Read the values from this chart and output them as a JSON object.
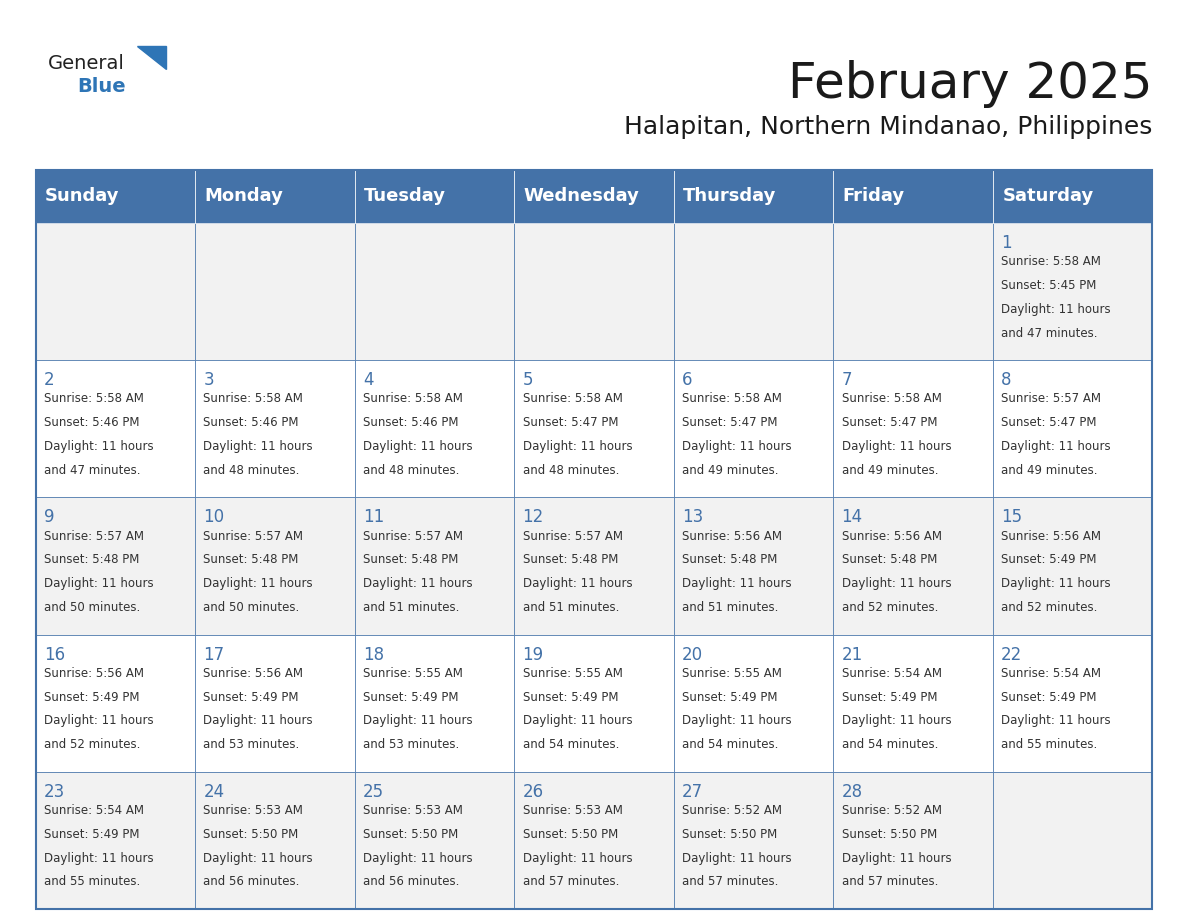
{
  "title": "February 2025",
  "subtitle": "Halapitan, Northern Mindanao, Philippines",
  "days_of_week": [
    "Sunday",
    "Monday",
    "Tuesday",
    "Wednesday",
    "Thursday",
    "Friday",
    "Saturday"
  ],
  "header_bg": "#4472a8",
  "header_text_color": "#ffffff",
  "cell_bg_even": "#f2f2f2",
  "cell_bg_odd": "#ffffff",
  "cell_border_color": "#4472a8",
  "day_number_color": "#4472a8",
  "text_color": "#333333",
  "calendar_data": [
    [
      null,
      null,
      null,
      null,
      null,
      null,
      {
        "day": 1,
        "sunrise": "5:58 AM",
        "sunset": "5:45 PM",
        "daylight": "11 hours and 47 minutes."
      }
    ],
    [
      {
        "day": 2,
        "sunrise": "5:58 AM",
        "sunset": "5:46 PM",
        "daylight": "11 hours and 47 minutes."
      },
      {
        "day": 3,
        "sunrise": "5:58 AM",
        "sunset": "5:46 PM",
        "daylight": "11 hours and 48 minutes."
      },
      {
        "day": 4,
        "sunrise": "5:58 AM",
        "sunset": "5:46 PM",
        "daylight": "11 hours and 48 minutes."
      },
      {
        "day": 5,
        "sunrise": "5:58 AM",
        "sunset": "5:47 PM",
        "daylight": "11 hours and 48 minutes."
      },
      {
        "day": 6,
        "sunrise": "5:58 AM",
        "sunset": "5:47 PM",
        "daylight": "11 hours and 49 minutes."
      },
      {
        "day": 7,
        "sunrise": "5:58 AM",
        "sunset": "5:47 PM",
        "daylight": "11 hours and 49 minutes."
      },
      {
        "day": 8,
        "sunrise": "5:57 AM",
        "sunset": "5:47 PM",
        "daylight": "11 hours and 49 minutes."
      }
    ],
    [
      {
        "day": 9,
        "sunrise": "5:57 AM",
        "sunset": "5:48 PM",
        "daylight": "11 hours and 50 minutes."
      },
      {
        "day": 10,
        "sunrise": "5:57 AM",
        "sunset": "5:48 PM",
        "daylight": "11 hours and 50 minutes."
      },
      {
        "day": 11,
        "sunrise": "5:57 AM",
        "sunset": "5:48 PM",
        "daylight": "11 hours and 51 minutes."
      },
      {
        "day": 12,
        "sunrise": "5:57 AM",
        "sunset": "5:48 PM",
        "daylight": "11 hours and 51 minutes."
      },
      {
        "day": 13,
        "sunrise": "5:56 AM",
        "sunset": "5:48 PM",
        "daylight": "11 hours and 51 minutes."
      },
      {
        "day": 14,
        "sunrise": "5:56 AM",
        "sunset": "5:48 PM",
        "daylight": "11 hours and 52 minutes."
      },
      {
        "day": 15,
        "sunrise": "5:56 AM",
        "sunset": "5:49 PM",
        "daylight": "11 hours and 52 minutes."
      }
    ],
    [
      {
        "day": 16,
        "sunrise": "5:56 AM",
        "sunset": "5:49 PM",
        "daylight": "11 hours and 52 minutes."
      },
      {
        "day": 17,
        "sunrise": "5:56 AM",
        "sunset": "5:49 PM",
        "daylight": "11 hours and 53 minutes."
      },
      {
        "day": 18,
        "sunrise": "5:55 AM",
        "sunset": "5:49 PM",
        "daylight": "11 hours and 53 minutes."
      },
      {
        "day": 19,
        "sunrise": "5:55 AM",
        "sunset": "5:49 PM",
        "daylight": "11 hours and 54 minutes."
      },
      {
        "day": 20,
        "sunrise": "5:55 AM",
        "sunset": "5:49 PM",
        "daylight": "11 hours and 54 minutes."
      },
      {
        "day": 21,
        "sunrise": "5:54 AM",
        "sunset": "5:49 PM",
        "daylight": "11 hours and 54 minutes."
      },
      {
        "day": 22,
        "sunrise": "5:54 AM",
        "sunset": "5:49 PM",
        "daylight": "11 hours and 55 minutes."
      }
    ],
    [
      {
        "day": 23,
        "sunrise": "5:54 AM",
        "sunset": "5:49 PM",
        "daylight": "11 hours and 55 minutes."
      },
      {
        "day": 24,
        "sunrise": "5:53 AM",
        "sunset": "5:50 PM",
        "daylight": "11 hours and 56 minutes."
      },
      {
        "day": 25,
        "sunrise": "5:53 AM",
        "sunset": "5:50 PM",
        "daylight": "11 hours and 56 minutes."
      },
      {
        "day": 26,
        "sunrise": "5:53 AM",
        "sunset": "5:50 PM",
        "daylight": "11 hours and 57 minutes."
      },
      {
        "day": 27,
        "sunrise": "5:52 AM",
        "sunset": "5:50 PM",
        "daylight": "11 hours and 57 minutes."
      },
      {
        "day": 28,
        "sunrise": "5:52 AM",
        "sunset": "5:50 PM",
        "daylight": "11 hours and 57 minutes."
      },
      null
    ]
  ],
  "logo_text_general": "General",
  "logo_text_blue": "Blue",
  "logo_triangle_color": "#2e75b6",
  "title_fontsize": 36,
  "subtitle_fontsize": 18,
  "header_fontsize": 13,
  "day_num_fontsize": 12,
  "cell_text_fontsize": 8.5
}
